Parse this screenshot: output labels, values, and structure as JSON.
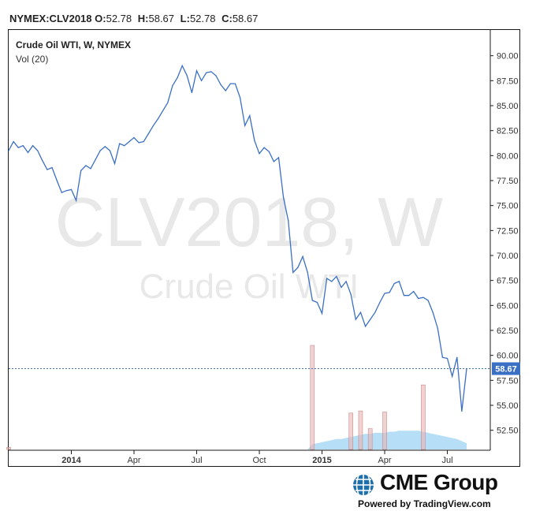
{
  "header": {
    "symbol": "NYMEX:CLV2018",
    "o_label": "O:",
    "o_value": "52.78",
    "h_label": "H:",
    "h_value": "58.67",
    "l_label": "L:",
    "l_value": "52.78",
    "c_label": "C:",
    "c_value": "58.67"
  },
  "legend": {
    "title": "Crude Oil WTI, W, NYMEX",
    "volume": "Vol (20)"
  },
  "watermark": {
    "line1": "CLV2018, W",
    "line2": "Crude Oil WTI"
  },
  "footer": {
    "brand": "CME Group",
    "powered": "Powered by TradingView.com"
  },
  "colors": {
    "line": "#3b6fc4",
    "last_price_bg": "#3b6fc4",
    "volume_bar": "#e8b4b4",
    "volume_area": "#a9d8f5",
    "watermark": "#e6e6e6"
  },
  "chart_data": {
    "type": "line",
    "title": "Crude Oil WTI, W, NYMEX",
    "ylim": [
      50.5,
      91.0
    ],
    "x_ticks": [
      "2014",
      "Apr",
      "Jul",
      "Oct",
      "2015",
      "Apr",
      "Jul"
    ],
    "y_ticks": [
      "90.00",
      "87.50",
      "85.00",
      "82.50",
      "80.00",
      "77.50",
      "75.00",
      "72.50",
      "70.00",
      "67.50",
      "65.00",
      "62.50",
      "60.00",
      "57.50",
      "55.00",
      "52.50"
    ],
    "last_price": "58.67",
    "last_value": 58.67,
    "series": [
      {
        "values": [
          80.5,
          81.4,
          80.8,
          81.0,
          80.3,
          81.0,
          80.5,
          79.5,
          78.6,
          78.8,
          77.5,
          76.3,
          76.5,
          76.6,
          75.5,
          78.5,
          79.0,
          78.7,
          79.6,
          80.5,
          80.9,
          80.5,
          79.2,
          81.2,
          81.0,
          81.4,
          81.8,
          81.3,
          81.4,
          82.2,
          83.0,
          83.7,
          84.5,
          85.3,
          87.0,
          87.8,
          89.0,
          88.0,
          86.3,
          88.5,
          87.5,
          88.3,
          88.4,
          88.0,
          87.1,
          86.5,
          87.2,
          87.2,
          85.8,
          83.0,
          84.0,
          81.5,
          80.2,
          80.8,
          80.4,
          79.4,
          79.8,
          75.8,
          73.5,
          68.3,
          68.8,
          69.9,
          68.3,
          65.5,
          65.3,
          64.2,
          67.7,
          67.4,
          67.9,
          66.8,
          67.4,
          66.1,
          63.6,
          64.3,
          62.9,
          63.6,
          64.3,
          65.3,
          66.2,
          66.3,
          67.2,
          67.4,
          66.0,
          66.0,
          66.4,
          65.7,
          65.8,
          65.5,
          64.3,
          62.7,
          59.8,
          59.7,
          57.9,
          59.8,
          54.4,
          58.67
        ]
      }
    ],
    "volume": {
      "label": "Vol (20)",
      "bars": [
        0.02,
        0.0,
        0.0,
        0.0,
        0.0,
        0.0,
        0.0,
        0.0,
        0.0,
        0.0,
        0.0,
        0.0,
        0.0,
        0.0,
        0.0,
        0.0,
        0.0,
        0.0,
        0.0,
        0.0,
        0.0,
        0.0,
        0.0,
        0.0,
        0.0,
        0.0,
        0.0,
        0.0,
        0.0,
        0.0,
        0.0,
        0.0,
        0.0,
        0.0,
        0.0,
        0.0,
        0.0,
        0.0,
        0.0,
        0.0,
        0.0,
        0.0,
        0.0,
        0.0,
        0.0,
        0.0,
        0.0,
        0.0,
        0.0,
        0.0,
        0.0,
        0.0,
        0.0,
        0.0,
        0.0,
        0.0,
        0.0,
        0.0,
        0.0,
        0.0,
        0.0,
        0.0,
        0.0,
        1.0,
        0.0,
        0.0,
        0.0,
        0.0,
        0.0,
        0.0,
        0.0,
        0.35,
        0.0,
        0.37,
        0.0,
        0.2,
        0.0,
        0.0,
        0.36,
        0.0,
        0.0,
        0.0,
        0.0,
        0.0,
        0.0,
        0.0,
        0.62,
        0.0,
        0.0,
        0.0,
        0.0,
        0.0,
        0.0,
        0.0,
        0.0,
        0.0
      ],
      "average": [
        0.0,
        0.0,
        0.0,
        0.0,
        0.0,
        0.0,
        0.0,
        0.0,
        0.0,
        0.0,
        0.0,
        0.0,
        0.0,
        0.0,
        0.0,
        0.0,
        0.0,
        0.0,
        0.0,
        0.0,
        0.0,
        0.0,
        0.0,
        0.0,
        0.0,
        0.0,
        0.0,
        0.0,
        0.0,
        0.0,
        0.0,
        0.0,
        0.0,
        0.0,
        0.0,
        0.0,
        0.0,
        0.0,
        0.0,
        0.0,
        0.0,
        0.0,
        0.0,
        0.0,
        0.0,
        0.0,
        0.0,
        0.0,
        0.0,
        0.0,
        0.0,
        0.0,
        0.0,
        0.0,
        0.0,
        0.0,
        0.0,
        0.0,
        0.0,
        0.0,
        0.0,
        0.0,
        0.0,
        0.05,
        0.06,
        0.07,
        0.08,
        0.09,
        0.1,
        0.1,
        0.11,
        0.12,
        0.13,
        0.14,
        0.15,
        0.15,
        0.16,
        0.16,
        0.16,
        0.17,
        0.17,
        0.18,
        0.18,
        0.18,
        0.18,
        0.18,
        0.17,
        0.16,
        0.15,
        0.14,
        0.13,
        0.12,
        0.11,
        0.1,
        0.08,
        0.06
      ]
    }
  }
}
